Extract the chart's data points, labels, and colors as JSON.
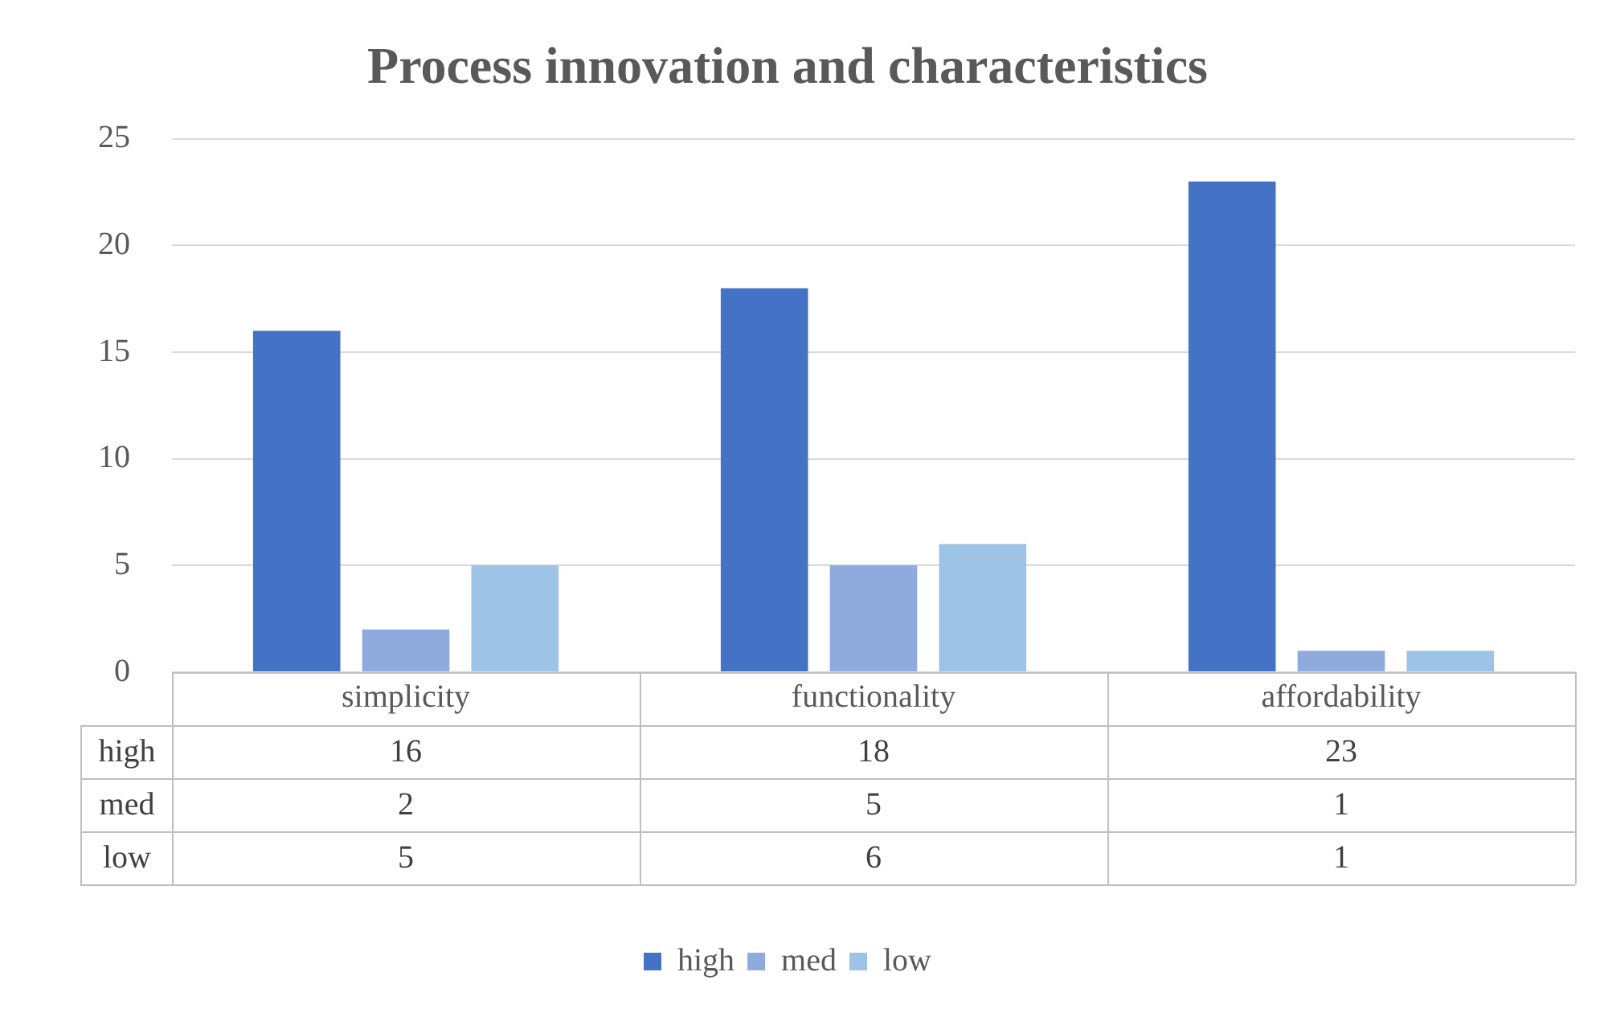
{
  "chart_data": {
    "type": "bar",
    "title": "Process innovation and characteristics",
    "categories": [
      "simplicity",
      "functionality",
      "affordability"
    ],
    "series": [
      {
        "name": "high",
        "color": "#4472c4",
        "values": [
          16,
          18,
          23
        ]
      },
      {
        "name": "med",
        "color": "#8faadc",
        "values": [
          2,
          5,
          1
        ]
      },
      {
        "name": "low",
        "color": "#9dc3e6",
        "values": [
          5,
          6,
          1
        ]
      }
    ],
    "ylim": [
      0,
      25
    ],
    "yticks": [
      0,
      5,
      10,
      15,
      20,
      25
    ],
    "grid": "y",
    "legend": "bottom",
    "data_labels": true
  }
}
